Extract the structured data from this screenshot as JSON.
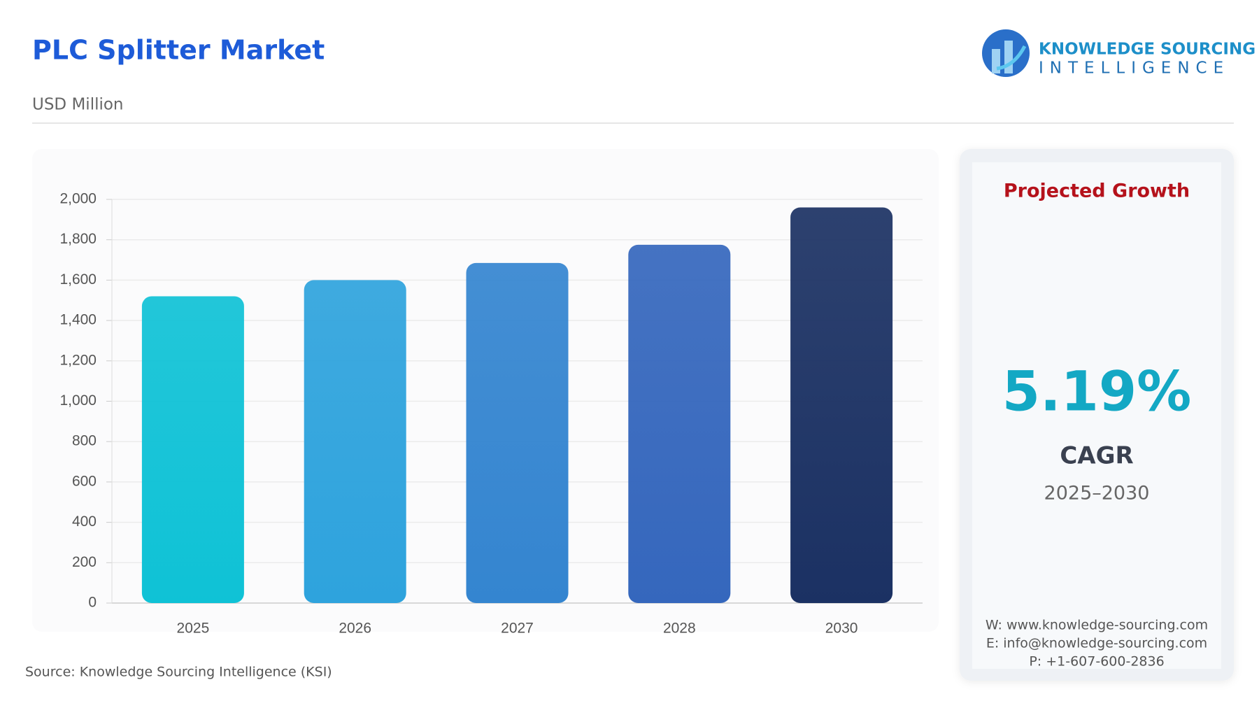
{
  "chart_data": {
    "type": "bar",
    "title": "PLC Splitter Market",
    "subtitle": "USD Million",
    "categories": [
      "2025",
      "2026",
      "2027",
      "2028",
      "2030"
    ],
    "values": [
      1520,
      1600,
      1685,
      1775,
      1960
    ],
    "colors": [
      "#0fc2d6",
      "#2ea3dd",
      "#3485d0",
      "#3567bd",
      "#1b3163"
    ],
    "ylim": [
      0,
      2000
    ],
    "yticks": [
      0,
      200,
      400,
      600,
      800,
      {
        "value": 1000,
        "label": "1,000"
      },
      {
        "value": 1200,
        "label": "1,200"
      },
      {
        "value": 1400,
        "label": "1,400"
      },
      {
        "value": 1600,
        "label": "1,600"
      },
      {
        "value": 1800,
        "label": "1,800"
      },
      {
        "value": 2000,
        "label": "2,000"
      }
    ],
    "grid": true,
    "source": "Source: Knowledge Sourcing Intelligence (KSI)"
  },
  "panel": {
    "title": "Projected Growth",
    "value": "5.19%",
    "label": "CAGR",
    "period": "2025–2030",
    "contacts": [
      "W: www.knowledge-sourcing.com",
      "E: info@knowledge-sourcing.com",
      "P: +1-607-600-2836"
    ]
  },
  "logo": {
    "line1": "KNOWLEDGE SOURCING",
    "line2": "INTELLIGENCE"
  }
}
